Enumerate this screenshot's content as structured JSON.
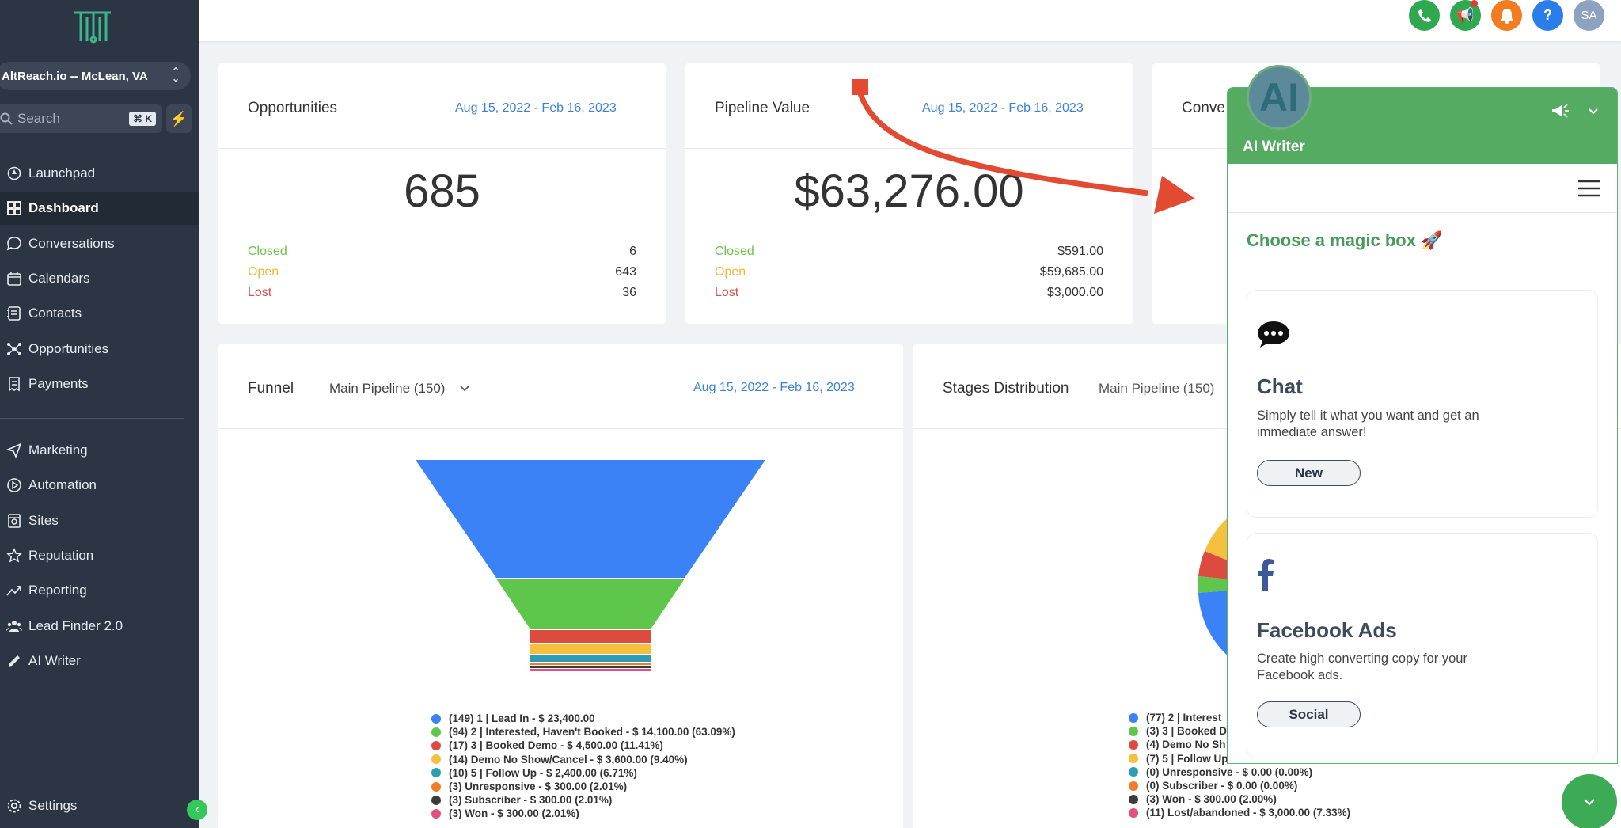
{
  "sidebar": {
    "location": "AltReach.io -- McLean, VA",
    "search_placeholder": "Search",
    "search_shortcut": "⌘ K",
    "nav": [
      {
        "label": "Launchpad",
        "icon": "rocket-icon"
      },
      {
        "label": "Dashboard",
        "icon": "grid-icon",
        "active": true
      },
      {
        "label": "Conversations",
        "icon": "chat-bubble-icon"
      },
      {
        "label": "Calendars",
        "icon": "calendar-icon"
      },
      {
        "label": "Contacts",
        "icon": "contacts-icon"
      },
      {
        "label": "Opportunities",
        "icon": "network-icon"
      },
      {
        "label": "Payments",
        "icon": "receipt-icon"
      }
    ],
    "nav2": [
      {
        "label": "Marketing",
        "icon": "send-icon"
      },
      {
        "label": "Automation",
        "icon": "automation-icon"
      },
      {
        "label": "Sites",
        "icon": "sites-icon"
      },
      {
        "label": "Reputation",
        "icon": "star-icon"
      },
      {
        "label": "Reporting",
        "icon": "trend-icon"
      },
      {
        "label": "Lead Finder 2.0",
        "icon": "users-icon"
      },
      {
        "label": "AI Writer",
        "icon": "pencil-icon"
      }
    ],
    "settings": "Settings"
  },
  "topbar": {
    "avatar_initials": "SA",
    "colors": {
      "phone": "#2fa84f",
      "megaphone": "#2fa84f",
      "bell": "#f47c20",
      "help": "#2b7de9",
      "avatar": "#8da2c0"
    }
  },
  "opportunities": {
    "title": "Opportunities",
    "date": "Aug 15, 2022 - Feb 16, 2023",
    "total": "685",
    "closed_label": "Closed",
    "closed": "6",
    "open_label": "Open",
    "open": "643",
    "lost_label": "Lost",
    "lost": "36"
  },
  "pipeline": {
    "title": "Pipeline Value",
    "date": "Aug 15, 2022 - Feb 16, 2023",
    "total": "$63,276.00",
    "closed_label": "Closed",
    "closed": "$591.00",
    "open_label": "Open",
    "open": "$59,685.00",
    "lost_label": "Lost",
    "lost": "$3,000.00"
  },
  "conversion": {
    "title_partial": "Conve"
  },
  "funnel": {
    "title": "Funnel",
    "pipeline": "Main Pipeline (150)",
    "date": "Aug 15, 2022 - Feb 16, 2023",
    "legend": [
      {
        "text": "(149) 1 | Lead In - $ 23,400.00",
        "color": "#3b82f6"
      },
      {
        "text": "(94) 2 | Interested, Haven't Booked - $ 14,100.00 (63.09%)",
        "color": "#5ec74b"
      },
      {
        "text": "(17) 3 | Booked Demo - $ 4,500.00 (11.41%)",
        "color": "#dd4b3e"
      },
      {
        "text": "(14) Demo No Show/Cancel - $ 3,600.00 (9.40%)",
        "color": "#f4c03d"
      },
      {
        "text": "(10) 5 | Follow Up - $ 2,400.00 (6.71%)",
        "color": "#2d9db5"
      },
      {
        "text": "(3) Unresponsive - $ 300.00 (2.01%)",
        "color": "#f07e26"
      },
      {
        "text": "(3) Subscriber - $ 300.00 (2.01%)",
        "color": "#3b3b3b"
      },
      {
        "text": "(3) Won - $ 300.00 (2.01%)",
        "color": "#e24f80"
      }
    ]
  },
  "stages": {
    "title": "Stages Distribution",
    "pipeline": "Main Pipeline (150)",
    "legend": [
      {
        "text": "(77) 2 | Interest",
        "color": "#3b82f6"
      },
      {
        "text": "(3) 3 | Booked D",
        "color": "#5ec74b"
      },
      {
        "text": "(4) Demo No Sh",
        "color": "#dd4b3e"
      },
      {
        "text": "(7) 5 | Follow Up",
        "color": "#f4c03d"
      },
      {
        "text": "(0) Unresponsive - $ 0.00 (0.00%)",
        "color": "#2d9db5"
      },
      {
        "text": "(0) Subscriber - $ 0.00 (0.00%)",
        "color": "#f07e26"
      },
      {
        "text": "(3) Won - $ 300.00 (2.00%)",
        "color": "#3b3b3b"
      },
      {
        "text": "(11) Lost/abandoned - $ 3,000.00 (7.33%)",
        "color": "#e24f80"
      }
    ]
  },
  "ai_writer": {
    "avatar_text": "AI",
    "title": "AI Writer",
    "choose": "Choose a magic box 🚀",
    "boxes": [
      {
        "title": "Chat",
        "desc": "Simply tell it what you want and get an immediate answer!",
        "button": "New",
        "icon": "speech-bubble-icon"
      },
      {
        "title": "Facebook Ads",
        "desc": "Create high converting copy for your Facebook ads.",
        "button": "Social",
        "icon": "facebook-icon"
      }
    ]
  }
}
